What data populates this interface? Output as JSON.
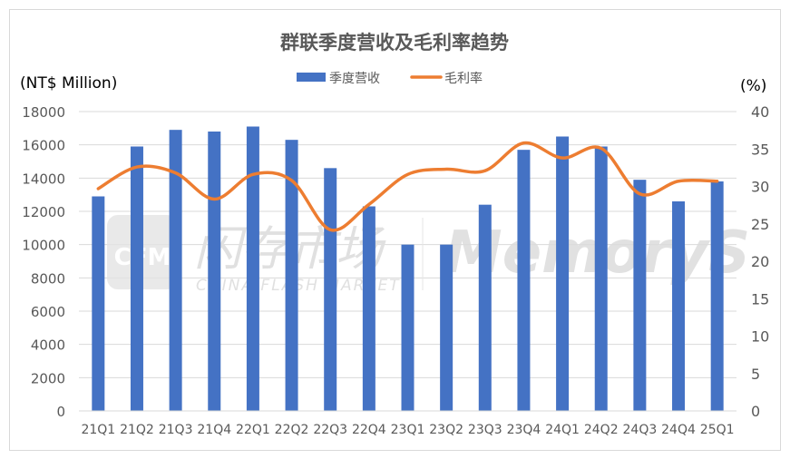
{
  "chart_data": {
    "type": "bar+line",
    "title": "群联季度营收及毛利率趋势",
    "ylabel_left": "(NT$ Million)",
    "ylabel_right": "(%)",
    "categories": [
      "21Q1",
      "21Q2",
      "21Q3",
      "21Q4",
      "22Q1",
      "22Q2",
      "22Q3",
      "22Q4",
      "23Q1",
      "23Q2",
      "23Q3",
      "23Q4",
      "24Q1",
      "24Q2",
      "24Q3",
      "24Q4",
      "25Q1"
    ],
    "series": [
      {
        "name": "季度营收",
        "type": "bar",
        "axis": "left",
        "color": "#4472c4",
        "values": [
          12900,
          15900,
          16900,
          16800,
          17100,
          16300,
          14600,
          12300,
          10000,
          10000,
          12400,
          15700,
          16500,
          15900,
          13900,
          12600,
          13800
        ]
      },
      {
        "name": "毛利率",
        "type": "line",
        "axis": "right",
        "color": "#ed7d31",
        "values": [
          29.7,
          32.6,
          31.8,
          28.3,
          31.6,
          30.8,
          24.2,
          27.6,
          31.6,
          32.3,
          32.1,
          35.8,
          33.8,
          35.1,
          29.0,
          30.7,
          30.7
        ]
      }
    ],
    "ylim_left": [
      0,
      18000
    ],
    "yticks_left": [
      "0",
      "2000",
      "4000",
      "6000",
      "8000",
      "10000",
      "12000",
      "14000",
      "16000",
      "18000"
    ],
    "ylim_right": [
      0,
      40
    ],
    "yticks_right": [
      "0",
      "5",
      "10",
      "15",
      "20",
      "25",
      "30",
      "35",
      "40"
    ],
    "grid": true,
    "legend_position": "top-center"
  },
  "watermark": {
    "cn": "闪存市场",
    "en": "CHINA FLASH MARKET",
    "brand": "MemoryS",
    "logo": "CFM"
  }
}
